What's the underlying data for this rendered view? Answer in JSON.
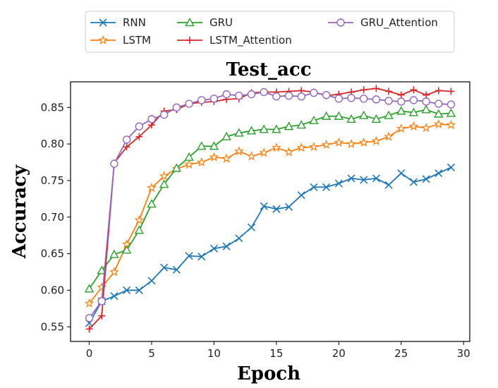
{
  "chart_data": {
    "type": "line",
    "title": "Test_acc",
    "xlabel": "Epoch",
    "ylabel": "Accuracy",
    "xlim": [
      -1.5,
      30.5
    ],
    "ylim": [
      0.53,
      0.885
    ],
    "xticks": [
      0,
      5,
      10,
      15,
      20,
      25,
      30
    ],
    "yticks": [
      0.55,
      0.6,
      0.65,
      0.7,
      0.75,
      0.8,
      0.85
    ],
    "ytick_labels": [
      "0.55",
      "0.60",
      "0.65",
      "0.70",
      "0.75",
      "0.80",
      "0.85"
    ],
    "grid": false,
    "legend_position": "top",
    "x": [
      0,
      1,
      2,
      3,
      4,
      5,
      6,
      7,
      8,
      9,
      10,
      11,
      12,
      13,
      14,
      15,
      16,
      17,
      18,
      19,
      20,
      21,
      22,
      23,
      24,
      25,
      26,
      27,
      28,
      29
    ],
    "series": [
      {
        "name": "RNN",
        "color": "#1f77b4",
        "marker": "x",
        "values": [
          0.555,
          0.585,
          0.592,
          0.6,
          0.6,
          0.613,
          0.631,
          0.628,
          0.647,
          0.646,
          0.657,
          0.66,
          0.671,
          0.686,
          0.715,
          0.711,
          0.714,
          0.73,
          0.741,
          0.741,
          0.746,
          0.753,
          0.751,
          0.753,
          0.744,
          0.76,
          0.748,
          0.752,
          0.76,
          0.768
        ]
      },
      {
        "name": "LSTM",
        "color": "#ff7f0e",
        "marker": "star",
        "values": [
          0.582,
          0.604,
          0.625,
          0.663,
          0.696,
          0.74,
          0.756,
          0.766,
          0.772,
          0.775,
          0.782,
          0.78,
          0.79,
          0.783,
          0.788,
          0.795,
          0.789,
          0.795,
          0.796,
          0.799,
          0.802,
          0.8,
          0.802,
          0.804,
          0.81,
          0.821,
          0.824,
          0.822,
          0.827,
          0.826
        ]
      },
      {
        "name": "GRU",
        "color": "#2ca02c",
        "marker": "triangle",
        "values": [
          0.602,
          0.627,
          0.649,
          0.655,
          0.682,
          0.718,
          0.745,
          0.767,
          0.782,
          0.797,
          0.797,
          0.81,
          0.815,
          0.818,
          0.82,
          0.82,
          0.824,
          0.826,
          0.832,
          0.838,
          0.838,
          0.834,
          0.839,
          0.834,
          0.839,
          0.845,
          0.843,
          0.847,
          0.841,
          0.842
        ]
      },
      {
        "name": "LSTM_Attention",
        "color": "#d62728",
        "marker": "plus",
        "values": [
          0.547,
          0.565,
          0.774,
          0.796,
          0.81,
          0.826,
          0.845,
          0.847,
          0.855,
          0.857,
          0.858,
          0.861,
          0.862,
          0.87,
          0.871,
          0.871,
          0.872,
          0.873,
          0.871,
          0.866,
          0.868,
          0.871,
          0.874,
          0.876,
          0.872,
          0.867,
          0.874,
          0.867,
          0.873,
          0.872
        ]
      },
      {
        "name": "GRU_Attention",
        "color": "#9467bd",
        "marker": "circle",
        "values": [
          0.562,
          0.585,
          0.773,
          0.806,
          0.824,
          0.834,
          0.84,
          0.85,
          0.855,
          0.86,
          0.862,
          0.868,
          0.866,
          0.868,
          0.871,
          0.865,
          0.866,
          0.865,
          0.87,
          0.867,
          0.862,
          0.863,
          0.862,
          0.861,
          0.859,
          0.858,
          0.86,
          0.858,
          0.855,
          0.854
        ]
      }
    ]
  }
}
